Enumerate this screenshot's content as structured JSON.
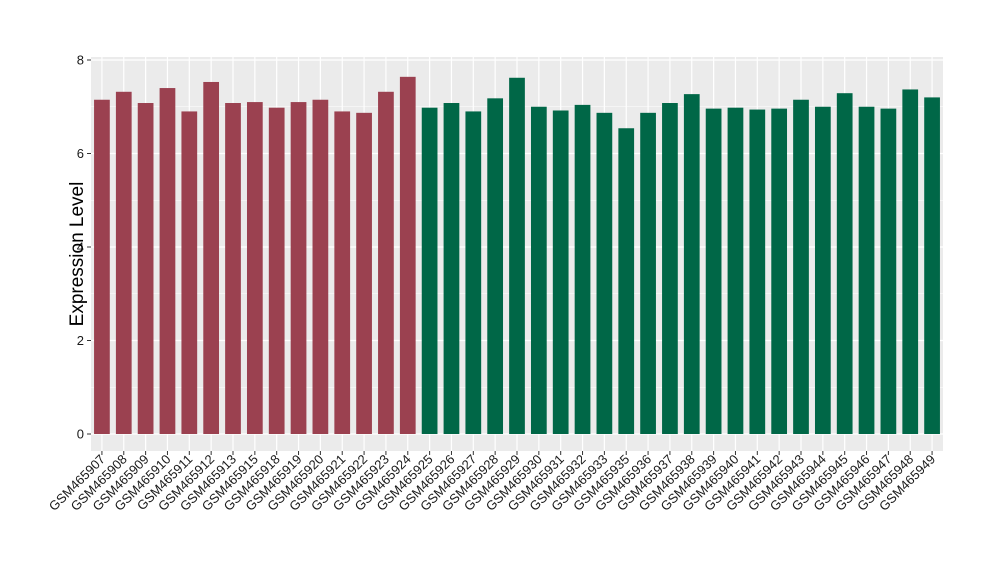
{
  "chart_data": {
    "type": "bar",
    "title": "",
    "xlabel": "",
    "ylabel": "Expression Level",
    "ylim": [
      0,
      8
    ],
    "yticks": [
      0,
      2,
      4,
      6,
      8
    ],
    "grid": true,
    "legend": "none",
    "colors": {
      "group1": "#9b4150",
      "group2": "#006747",
      "panel": "#ebebeb",
      "gridline": "#ffffff"
    },
    "categories": [
      "GSM465907",
      "GSM465908",
      "GSM465909",
      "GSM465910",
      "GSM465911",
      "GSM465912",
      "GSM465913",
      "GSM465915",
      "GSM465918",
      "GSM465919",
      "GSM465920",
      "GSM465921",
      "GSM465922",
      "GSM465923",
      "GSM465924",
      "GSM465925",
      "GSM465926",
      "GSM465927",
      "GSM465928",
      "GSM465929",
      "GSM465930",
      "GSM465931",
      "GSM465932",
      "GSM465933",
      "GSM465935",
      "GSM465936",
      "GSM465937",
      "GSM465938",
      "GSM465939",
      "GSM465940",
      "GSM465941",
      "GSM465942",
      "GSM465943",
      "GSM465944",
      "GSM465945",
      "GSM465946",
      "GSM465947",
      "GSM465948",
      "GSM465949"
    ],
    "values": [
      7.15,
      7.32,
      7.08,
      7.4,
      6.9,
      7.53,
      7.08,
      7.1,
      6.98,
      7.1,
      7.15,
      6.9,
      6.87,
      7.32,
      7.64,
      6.98,
      7.08,
      6.9,
      7.18,
      7.62,
      7.0,
      6.92,
      7.04,
      6.87,
      6.54,
      6.87,
      7.08,
      7.27,
      6.96,
      6.98,
      6.94,
      6.96,
      7.15,
      7.0,
      7.29,
      7.0,
      6.96,
      7.37,
      7.2
    ],
    "groups": [
      1,
      1,
      1,
      1,
      1,
      1,
      1,
      1,
      1,
      1,
      1,
      1,
      1,
      1,
      1,
      2,
      2,
      2,
      2,
      2,
      2,
      2,
      2,
      2,
      2,
      2,
      2,
      2,
      2,
      2,
      2,
      2,
      2,
      2,
      2,
      2,
      2,
      2,
      2
    ]
  }
}
